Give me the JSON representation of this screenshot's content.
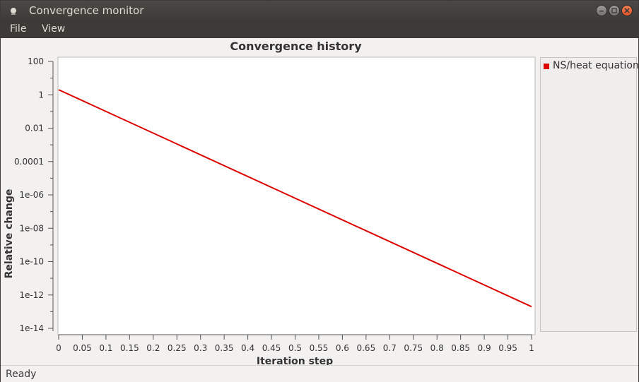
{
  "window": {
    "title": "Convergence monitor"
  },
  "menu": {
    "items": [
      {
        "label": "File"
      },
      {
        "label": "View"
      }
    ]
  },
  "status": {
    "text": "Ready"
  },
  "colors": {
    "series": "#dd0000",
    "titlebar": "#3c3b37",
    "close_button": "#e3532a"
  },
  "icons": [
    "app-icon",
    "minimize-icon",
    "maximize-icon",
    "close-icon"
  ],
  "chart_data": {
    "type": "line",
    "title": "Convergence history",
    "xlabel": "Iteration step",
    "ylabel": "Relative change",
    "yscale": "log",
    "xlim": [
      0,
      1
    ],
    "ylim": [
      1e-14,
      100
    ],
    "grid": false,
    "legend_position": "right",
    "xticks": [
      "0",
      "0.05",
      "0.1",
      "0.15",
      "0.2",
      "0.25",
      "0.3",
      "0.35",
      "0.4",
      "0.45",
      "0.5",
      "0.55",
      "0.6",
      "0.65",
      "0.7",
      "0.75",
      "0.8",
      "0.85",
      "0.9",
      "0.95",
      "1"
    ],
    "yticks": [
      "100",
      "1",
      "0.01",
      "0.0001",
      "1e-06",
      "1e-08",
      "1e-10",
      "1e-12",
      "1e-14"
    ],
    "series": [
      {
        "name": "NS/heat equation",
        "x": [
          0,
          1
        ],
        "y": [
          2.0,
          2e-13
        ]
      }
    ]
  }
}
